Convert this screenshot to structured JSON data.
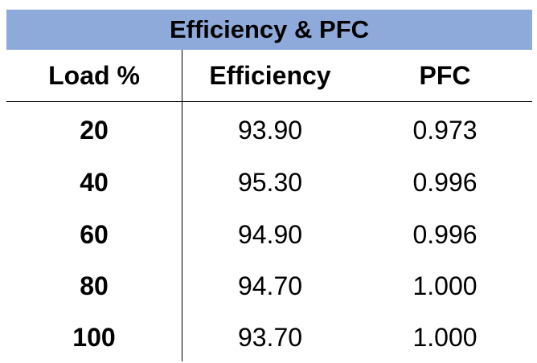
{
  "chart_data": {
    "type": "table",
    "title": "Efficiency & PFC",
    "columns": [
      "Load %",
      "Efficiency",
      "PFC"
    ],
    "rows": [
      [
        "20",
        "93.90",
        "0.973"
      ],
      [
        "40",
        "95.30",
        "0.996"
      ],
      [
        "60",
        "94.90",
        "0.996"
      ],
      [
        "80",
        "94.70",
        "1.000"
      ],
      [
        "100",
        "93.70",
        "1.000"
      ]
    ],
    "colors": {
      "title_background": "#8eaadb",
      "text": "#000000"
    }
  }
}
